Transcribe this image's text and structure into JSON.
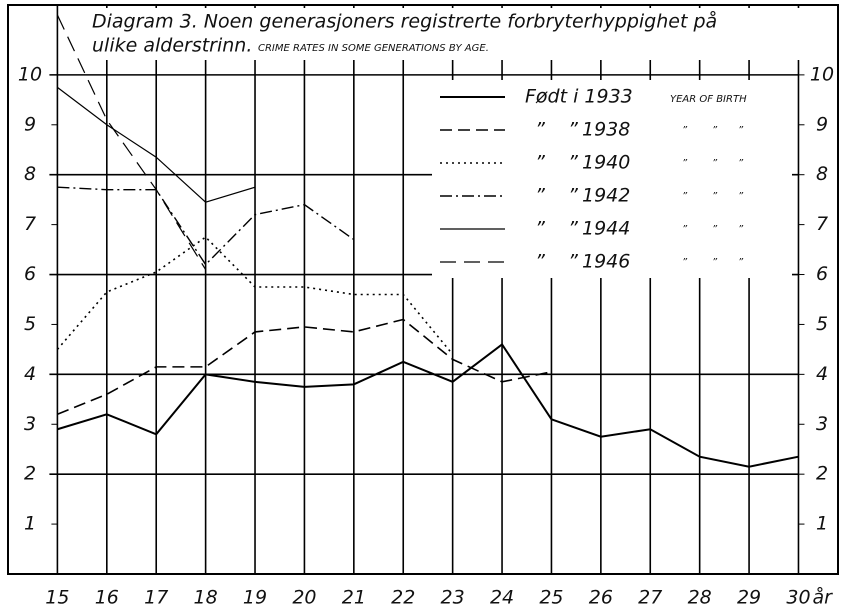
{
  "chart_data": {
    "type": "line",
    "title": [
      "Diagram 3. Noen generasjoners registrerte forbryterhyppighet på",
      "ulike alderstrinn."
    ],
    "subtitle": "CRIME RATES IN SOME GENERATIONS BY AGE.",
    "x_unit": "år",
    "legend_note": "YEAR OF BIRTH",
    "ditto_mark": "”",
    "x": [
      15,
      16,
      17,
      18,
      19,
      20,
      21,
      22,
      23,
      24,
      25,
      26,
      27,
      28,
      29,
      30
    ],
    "xlim": [
      14,
      30.8
    ],
    "xticks": [
      15,
      16,
      17,
      18,
      19,
      20,
      21,
      22,
      23,
      24,
      25,
      26,
      27,
      28,
      29,
      30
    ],
    "ylim": [
      0,
      11.4
    ],
    "yticks": [
      1,
      2,
      3,
      4,
      5,
      6,
      7,
      8,
      9,
      10
    ],
    "ygrid": [
      2,
      4,
      6,
      8,
      10
    ],
    "grid": true,
    "legend": "top-right",
    "series": [
      {
        "name": "Født i 1933",
        "color": "#000000",
        "dash": "solid",
        "width": 2,
        "values": [
          2.9,
          3.2,
          2.8,
          4.0,
          3.85,
          3.75,
          3.8,
          4.25,
          3.85,
          4.6,
          3.1,
          2.75,
          2.9,
          2.35,
          2.15,
          2.35
        ]
      },
      {
        "name": "1938",
        "color": "#000000",
        "dash": "dashed",
        "width": 1.6,
        "values": [
          3.2,
          3.6,
          4.15,
          4.15,
          4.85,
          4.95,
          4.85,
          5.1,
          4.3,
          3.85,
          4.05,
          null,
          null,
          null,
          null,
          null
        ]
      },
      {
        "name": "1940",
        "color": "#000000",
        "dash": "dotted",
        "width": 1.6,
        "values": [
          4.5,
          5.65,
          6.05,
          6.75,
          5.75,
          5.75,
          5.6,
          5.6,
          4.4,
          null,
          null,
          null,
          null,
          null,
          null,
          null
        ]
      },
      {
        "name": "1942",
        "color": "#000000",
        "dash": "dashdot",
        "width": 1.4,
        "values": [
          7.75,
          7.7,
          7.7,
          6.2,
          7.2,
          7.4,
          6.7,
          null,
          null,
          null,
          null,
          null,
          null,
          null,
          null,
          null
        ]
      },
      {
        "name": "1944",
        "color": "#000000",
        "dash": "solid",
        "width": 1.2,
        "values": [
          9.75,
          9.0,
          8.35,
          7.45,
          7.75,
          null,
          null,
          null,
          null,
          null,
          null,
          null,
          null,
          null,
          null,
          null
        ]
      },
      {
        "name": "1946",
        "color": "#000000",
        "dash": "longdash",
        "width": 1.2,
        "values": [
          11.2,
          9.1,
          7.7,
          6.1,
          null,
          null,
          null,
          null,
          null,
          null,
          null,
          null,
          null,
          null,
          null,
          null
        ]
      }
    ]
  }
}
